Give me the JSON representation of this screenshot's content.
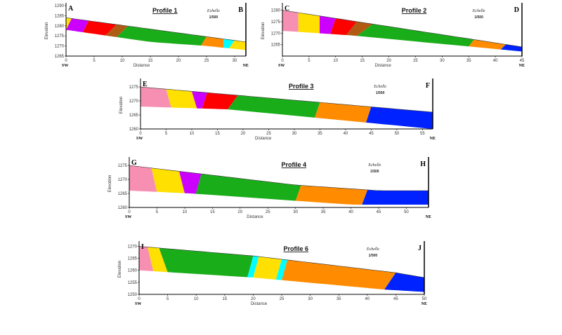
{
  "colors": {
    "pink": "#f78fb3",
    "yellow": "#ffe000",
    "purple": "#cc00ff",
    "red": "#ff0000",
    "brown": "#b05a14",
    "green": "#1aad1a",
    "orange": "#ff8c00",
    "cyan": "#00ffff",
    "blue": "#0022ff"
  },
  "chart_data": [
    {
      "type": "area",
      "title": "Profile 1",
      "corner_left": "A",
      "corner_right": "B",
      "dir_left": "SW",
      "dir_right": "NE",
      "xlabel": "Distance",
      "ylabel": "Elevation",
      "scale_top": "Echelle",
      "scale_bottom": "1/500",
      "xlim": [
        0,
        32
      ],
      "ylim": [
        1265,
        1290
      ],
      "xticks": [
        0,
        5,
        10,
        15,
        20,
        25,
        30
      ],
      "yticks": [
        1265,
        1270,
        1275,
        1280,
        1285,
        1290
      ],
      "top_surface": [
        [
          0,
          1284
        ],
        [
          32,
          1272
        ]
      ],
      "bottom_surface": [
        [
          0,
          1278
        ],
        [
          15,
          1272
        ],
        [
          25,
          1270
        ],
        [
          32,
          1268
        ]
      ],
      "layers": [
        {
          "color": "yellow",
          "top": [
            0,
            1
          ],
          "bottom": [
            0,
            0
          ]
        },
        {
          "color": "purple",
          "top": [
            1,
            4
          ],
          "bottom": [
            0,
            3
          ]
        },
        {
          "color": "red",
          "top": [
            4,
            9
          ],
          "bottom": [
            3,
            7
          ]
        },
        {
          "color": "brown",
          "top": [
            9,
            11
          ],
          "bottom": [
            7,
            9
          ]
        },
        {
          "color": "green",
          "top": [
            11,
            25
          ],
          "bottom": [
            9,
            24
          ]
        },
        {
          "color": "orange",
          "top": [
            25,
            28
          ],
          "bottom": [
            24,
            28
          ]
        },
        {
          "color": "cyan",
          "top": [
            28,
            30
          ],
          "bottom": [
            28,
            29
          ]
        },
        {
          "color": "yellow",
          "top": [
            30,
            32
          ],
          "bottom": [
            29,
            32
          ]
        }
      ]
    },
    {
      "type": "area",
      "title": "Profile 2",
      "corner_left": "C",
      "corner_right": "D",
      "dir_left": "SW",
      "dir_right": "NE",
      "xlabel": "Distance",
      "ylabel": "Elevation",
      "scale_top": "Echelle",
      "scale_bottom": "1/500",
      "xlim": [
        0,
        45
      ],
      "ylim": [
        1260,
        1282
      ],
      "xticks": [
        0,
        5,
        10,
        15,
        20,
        25,
        30,
        35,
        40,
        45
      ],
      "yticks": [
        1265,
        1270,
        1275,
        1280
      ],
      "top_surface": [
        [
          0,
          1280
        ],
        [
          45,
          1264
        ]
      ],
      "bottom_surface": [
        [
          0,
          1271
        ],
        [
          13,
          1269
        ],
        [
          45,
          1262
        ]
      ],
      "layers": [
        {
          "color": "pink",
          "top": [
            0,
            3
          ],
          "bottom": [
            0,
            3
          ]
        },
        {
          "color": "yellow",
          "top": [
            3,
            7
          ],
          "bottom": [
            3,
            7
          ]
        },
        {
          "color": "purple",
          "top": [
            7,
            10
          ],
          "bottom": [
            7,
            9
          ]
        },
        {
          "color": "red",
          "top": [
            10,
            14
          ],
          "bottom": [
            9,
            12
          ]
        },
        {
          "color": "brown",
          "top": [
            14,
            17
          ],
          "bottom": [
            12,
            14
          ]
        },
        {
          "color": "green",
          "top": [
            17,
            36
          ],
          "bottom": [
            14,
            35
          ]
        },
        {
          "color": "orange",
          "top": [
            36,
            42
          ],
          "bottom": [
            35,
            41
          ]
        },
        {
          "color": "blue",
          "top": [
            42,
            45
          ],
          "bottom": [
            41,
            45
          ]
        }
      ]
    },
    {
      "type": "area",
      "title": "Profile 3",
      "corner_left": "E",
      "corner_right": "F",
      "dir_left": "SW",
      "dir_right": "NE",
      "xlabel": "Distance",
      "ylabel": "Elevation",
      "scale_top": "Echelle",
      "scale_bottom": "1/500",
      "xlim": [
        0,
        57
      ],
      "ylim": [
        1260,
        1277
      ],
      "xticks": [
        0,
        5,
        10,
        15,
        20,
        25,
        30,
        35,
        40,
        45,
        50,
        55
      ],
      "yticks": [
        1260,
        1265,
        1270,
        1275
      ],
      "top_surface": [
        [
          0,
          1275
        ],
        [
          57,
          1266
        ]
      ],
      "bottom_surface": [
        [
          0,
          1268
        ],
        [
          17,
          1267
        ],
        [
          57,
          1260
        ]
      ],
      "layers": [
        {
          "color": "pink",
          "top": [
            0,
            5
          ],
          "bottom": [
            0,
            6
          ]
        },
        {
          "color": "yellow",
          "top": [
            5,
            10
          ],
          "bottom": [
            6,
            11
          ]
        },
        {
          "color": "purple",
          "top": [
            10,
            13
          ],
          "bottom": [
            11,
            12
          ]
        },
        {
          "color": "red",
          "top": [
            13,
            19
          ],
          "bottom": [
            12,
            17
          ]
        },
        {
          "color": "green",
          "top": [
            19,
            35
          ],
          "bottom": [
            17,
            34
          ]
        },
        {
          "color": "orange",
          "top": [
            35,
            45
          ],
          "bottom": [
            34,
            44
          ]
        },
        {
          "color": "blue",
          "top": [
            45,
            57
          ],
          "bottom": [
            44,
            57
          ]
        }
      ]
    },
    {
      "type": "area",
      "title": "Profile 4",
      "corner_left": "G",
      "corner_right": "H",
      "dir_left": "SW",
      "dir_right": "NE",
      "xlabel": "Distance",
      "ylabel": "Elevation",
      "scale_top": "Echelle",
      "scale_bottom": "1/500",
      "xlim": [
        0,
        54
      ],
      "ylim": [
        1260,
        1277
      ],
      "xticks": [
        0,
        5,
        10,
        15,
        20,
        25,
        30,
        35,
        40,
        45,
        50
      ],
      "yticks": [
        1260,
        1265,
        1270,
        1275
      ],
      "top_surface": [
        [
          0,
          1275
        ],
        [
          30,
          1268
        ],
        [
          45,
          1266
        ],
        [
          54,
          1266
        ]
      ],
      "bottom_surface": [
        [
          0,
          1266
        ],
        [
          11,
          1265
        ],
        [
          40,
          1261
        ],
        [
          54,
          1261
        ]
      ],
      "layers": [
        {
          "color": "pink",
          "top": [
            0,
            4
          ],
          "bottom": [
            0,
            5
          ]
        },
        {
          "color": "yellow",
          "top": [
            4,
            9
          ],
          "bottom": [
            5,
            10
          ]
        },
        {
          "color": "purple",
          "top": [
            9,
            13
          ],
          "bottom": [
            10,
            12
          ]
        },
        {
          "color": "green",
          "top": [
            13,
            31
          ],
          "bottom": [
            12,
            30
          ]
        },
        {
          "color": "orange",
          "top": [
            31,
            43
          ],
          "bottom": [
            30,
            42
          ]
        },
        {
          "color": "blue",
          "top": [
            43,
            54
          ],
          "bottom": [
            42,
            54
          ]
        }
      ]
    },
    {
      "type": "area",
      "title": "Profile 6",
      "corner_left": "I",
      "corner_right": "J",
      "dir_left": "SW",
      "dir_right": "NE",
      "xlabel": "Distance",
      "ylabel": "Elevation",
      "scale_top": "Echelle",
      "scale_bottom": "1/500",
      "xlim": [
        0,
        50
      ],
      "ylim": [
        1250,
        1271
      ],
      "xticks": [
        0,
        5,
        10,
        15,
        20,
        25,
        30,
        35,
        40,
        45,
        50
      ],
      "yticks": [
        1250,
        1255,
        1260,
        1265,
        1270
      ],
      "top_surface": [
        [
          0,
          1270
        ],
        [
          20,
          1266
        ],
        [
          45,
          1259
        ],
        [
          50,
          1257
        ]
      ],
      "bottom_surface": [
        [
          0,
          1260
        ],
        [
          20,
          1257
        ],
        [
          43,
          1252
        ],
        [
          50,
          1251
        ]
      ],
      "layers": [
        {
          "color": "pink",
          "top": [
            0,
            1.5
          ],
          "bottom": [
            0,
            2.5
          ]
        },
        {
          "color": "yellow",
          "top": [
            1.5,
            3.5
          ],
          "bottom": [
            2.5,
            5
          ]
        },
        {
          "color": "green",
          "top": [
            3.5,
            20
          ],
          "bottom": [
            5,
            19
          ]
        },
        {
          "color": "cyan",
          "top": [
            20,
            21
          ],
          "bottom": [
            19,
            20
          ]
        },
        {
          "color": "yellow",
          "top": [
            21,
            25
          ],
          "bottom": [
            20,
            24
          ]
        },
        {
          "color": "cyan",
          "top": [
            25,
            26
          ],
          "bottom": [
            24,
            25
          ]
        },
        {
          "color": "orange",
          "top": [
            26,
            45
          ],
          "bottom": [
            25,
            43
          ]
        },
        {
          "color": "blue",
          "top": [
            45,
            50
          ],
          "bottom": [
            43,
            50
          ]
        }
      ]
    }
  ]
}
